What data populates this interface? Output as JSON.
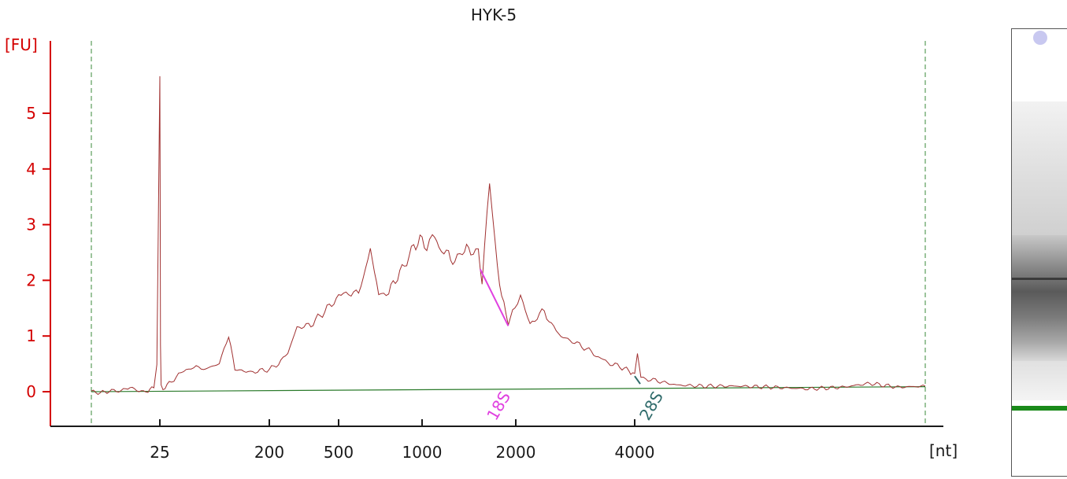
{
  "chart_data": {
    "type": "line",
    "title": "HYK-5",
    "ylabel": "[FU]",
    "xlabel": "[nt]",
    "ylim": [
      -0.6,
      6.2
    ],
    "yticks": [
      0,
      1,
      2,
      3,
      4,
      5
    ],
    "x_tick_labels": [
      "25",
      "200",
      "500",
      "1000",
      "2000",
      "4000"
    ],
    "x_scale": "nonlinear (electropherogram size scale)",
    "peak_markers": [
      {
        "label": "18S",
        "color": "#e040e0"
      },
      {
        "label": "28S",
        "color": "#2f6b6b"
      }
    ],
    "series": [
      {
        "color": "#a03030",
        "points_nt_fu": [
          [
            2,
            0.0
          ],
          [
            5,
            -0.02
          ],
          [
            8,
            0.01
          ],
          [
            12,
            0.02
          ],
          [
            15,
            0.08
          ],
          [
            18,
            0.01
          ],
          [
            21,
            0.0
          ],
          [
            23,
            0.1
          ],
          [
            24,
            0.5
          ],
          [
            24.5,
            3.0
          ],
          [
            25,
            5.65
          ],
          [
            25.5,
            3.5
          ],
          [
            26,
            0.8
          ],
          [
            27,
            0.1
          ],
          [
            30,
            0.05
          ],
          [
            40,
            0.15
          ],
          [
            55,
            0.3
          ],
          [
            75,
            0.45
          ],
          [
            95,
            0.4
          ],
          [
            120,
            0.5
          ],
          [
            135,
            1.02
          ],
          [
            145,
            0.4
          ],
          [
            170,
            0.35
          ],
          [
            200,
            0.4
          ],
          [
            240,
            0.5
          ],
          [
            280,
            0.7
          ],
          [
            320,
            1.15
          ],
          [
            380,
            1.2
          ],
          [
            440,
            1.45
          ],
          [
            500,
            1.7
          ],
          [
            560,
            1.8
          ],
          [
            620,
            1.75
          ],
          [
            690,
            2.55
          ],
          [
            740,
            1.75
          ],
          [
            800,
            1.8
          ],
          [
            880,
            2.2
          ],
          [
            950,
            2.6
          ],
          [
            1000,
            2.75
          ],
          [
            1050,
            2.6
          ],
          [
            1110,
            2.85
          ],
          [
            1180,
            2.6
          ],
          [
            1260,
            2.5
          ],
          [
            1350,
            2.3
          ],
          [
            1430,
            2.55
          ],
          [
            1520,
            2.55
          ],
          [
            1600,
            2.5
          ],
          [
            1640,
            2.0
          ],
          [
            1720,
            3.72
          ],
          [
            1780,
            2.6
          ],
          [
            1850,
            1.7
          ],
          [
            1920,
            1.25
          ],
          [
            1990,
            1.5
          ],
          [
            2080,
            1.78
          ],
          [
            2160,
            1.45
          ],
          [
            2240,
            1.2
          ],
          [
            2360,
            1.35
          ],
          [
            2480,
            1.45
          ],
          [
            2600,
            1.2
          ],
          [
            2760,
            1.0
          ],
          [
            2950,
            0.9
          ],
          [
            3150,
            0.8
          ],
          [
            3350,
            0.65
          ],
          [
            3550,
            0.52
          ],
          [
            3750,
            0.45
          ],
          [
            3900,
            0.38
          ],
          [
            4000,
            0.3
          ],
          [
            4040,
            0.68
          ],
          [
            4090,
            0.25
          ],
          [
            4300,
            0.2
          ],
          [
            4600,
            0.12
          ],
          [
            5000,
            0.1
          ],
          [
            5500,
            0.1
          ],
          [
            6000,
            0.08
          ],
          [
            6500,
            0.05
          ],
          [
            7000,
            0.08
          ],
          [
            7400,
            0.15
          ],
          [
            7800,
            0.08
          ],
          [
            8200,
            0.1
          ]
        ]
      },
      {
        "name": "baseline",
        "color": "#2a7a2a",
        "points_nt_fu": [
          [
            2,
            0.0
          ],
          [
            8200,
            0.09
          ]
        ]
      }
    ]
  },
  "gel": {
    "marker_color": "#c8c8f0",
    "lower_marker_color": "#1a8a1a"
  }
}
